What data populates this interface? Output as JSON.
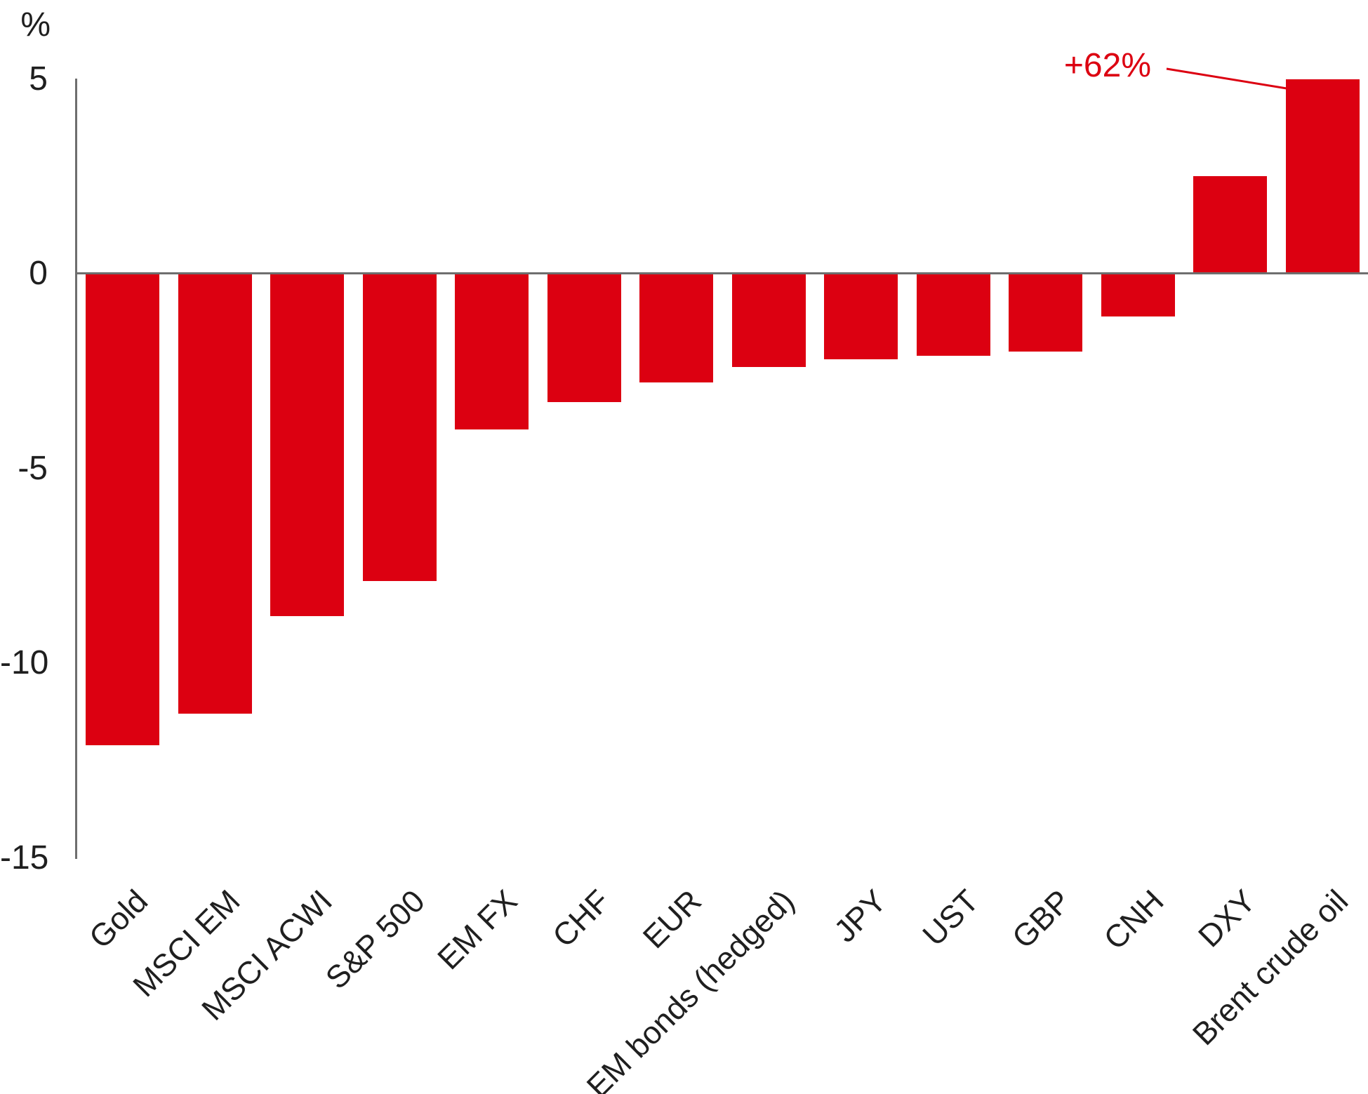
{
  "colors": {
    "bar": "#DC0011",
    "axis": "#6E6E6E",
    "text": "#1F1F1F",
    "accent": "#DC0011"
  },
  "annotation": {
    "text": "+62%"
  },
  "chart_data": {
    "type": "bar",
    "title": "",
    "xlabel": "",
    "ylabel": "%",
    "categories": [
      "Gold",
      "MSCI EM",
      "MSCI ACWI",
      "S&P 500",
      "EM FX",
      "CHF",
      "EUR",
      "EM bonds (hedged)",
      "JPY",
      "UST",
      "GBP",
      "CNH",
      "DXY",
      "Brent crude oil"
    ],
    "values": [
      -12.1,
      -11.3,
      -8.8,
      -7.9,
      -4.0,
      -3.3,
      -2.8,
      -2.4,
      -2.2,
      -2.1,
      -2.0,
      -1.1,
      2.5,
      62
    ],
    "yticks": [
      5,
      0,
      -5,
      -10,
      -15
    ],
    "ylim": [
      -15,
      5
    ],
    "clip_max": 5,
    "grid": false,
    "legend": false,
    "bar_color": "#DC0011",
    "annotations": [
      {
        "text": "+62%",
        "target_category": "Brent crude oil",
        "note": "bar clipped at +5 on axis"
      }
    ]
  }
}
